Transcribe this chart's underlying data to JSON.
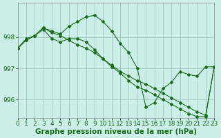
{
  "xlabel": "Graphe pression niveau de la mer (hPa)",
  "background_color": "#cceee8",
  "grid_color": "#aaccc8",
  "line_color": "#1a6e1a",
  "marker_color": "#1a6e1a",
  "xlim": [
    0,
    23
  ],
  "ylim": [
    995.4,
    999.1
  ],
  "yticks": [
    996,
    997,
    998
  ],
  "xticks": [
    0,
    1,
    2,
    3,
    4,
    5,
    6,
    7,
    8,
    9,
    10,
    11,
    12,
    13,
    14,
    15,
    16,
    17,
    18,
    19,
    20,
    21,
    22,
    23
  ],
  "series": [
    [
      997.65,
      997.9,
      998.05,
      998.3,
      998.2,
      998.1,
      998.35,
      998.5,
      998.65,
      998.7,
      998.5,
      998.2,
      997.8,
      997.5,
      997.0,
      995.75,
      995.9,
      996.35,
      996.55,
      996.9,
      996.8,
      996.75,
      997.05,
      997.05
    ],
    [
      997.65,
      997.95,
      998.05,
      998.25,
      997.95,
      997.85,
      997.95,
      997.95,
      997.85,
      997.6,
      997.3,
      997.05,
      996.85,
      996.6,
      996.4,
      996.3,
      996.15,
      996.0,
      995.85,
      995.7,
      995.55,
      995.45,
      995.45,
      997.05
    ],
    [
      997.65,
      997.9,
      998.05,
      998.3,
      998.15,
      998.05,
      997.9,
      997.75,
      997.65,
      997.5,
      997.3,
      997.1,
      996.9,
      996.75,
      996.6,
      996.5,
      996.35,
      996.2,
      996.05,
      995.9,
      995.75,
      995.6,
      995.5,
      997.05
    ]
  ],
  "title_fontsize": 7.5,
  "tick_fontsize": 6.5,
  "font_color": "#1a6e1a"
}
